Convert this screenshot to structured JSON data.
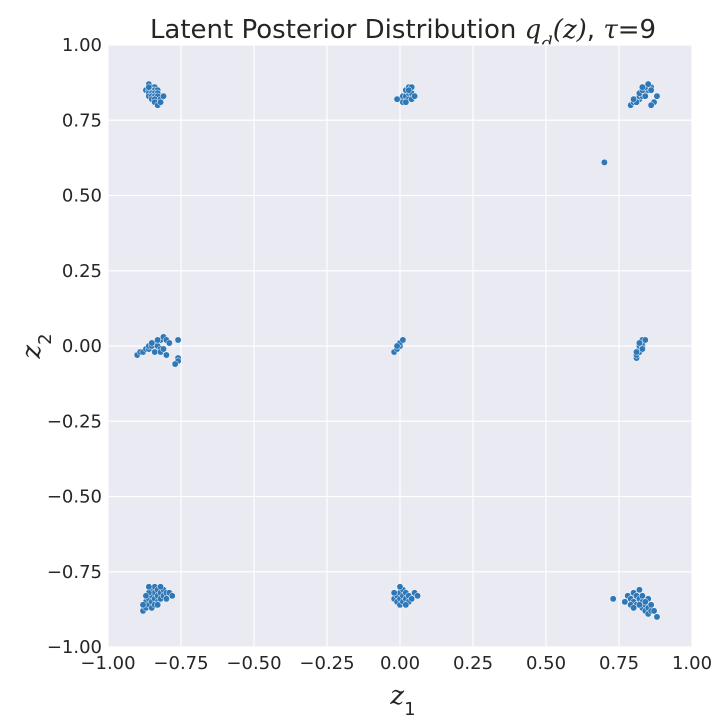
{
  "chart_data": {
    "type": "scatter",
    "title": {
      "prefix": "Latent Posterior Distribution ",
      "q": "q",
      "q_sub": "d",
      "arg": "(z)",
      "sep": ", ",
      "tau": "τ",
      "tau_value": "=9"
    },
    "xlabel": {
      "main": "z",
      "sub": "1"
    },
    "ylabel": {
      "main": "z",
      "sub": "2"
    },
    "xlim": [
      -1.0,
      1.0
    ],
    "ylim": [
      -1.0,
      1.0
    ],
    "xticks": [
      -1.0,
      -0.75,
      -0.5,
      -0.25,
      0.0,
      0.25,
      0.5,
      0.75,
      1.0
    ],
    "yticks": [
      -1.0,
      -0.75,
      -0.5,
      -0.25,
      0.0,
      0.25,
      0.5,
      0.75,
      1.0
    ],
    "xtick_labels": [
      "−1.00",
      "−0.75",
      "−0.50",
      "−0.25",
      "0.00",
      "0.25",
      "0.50",
      "0.75",
      "1.00"
    ],
    "ytick_labels": [
      "−1.00",
      "−0.75",
      "−0.50",
      "−0.25",
      "0.00",
      "0.25",
      "0.50",
      "0.75",
      "1.00"
    ],
    "grid": true,
    "background_color": "#eaeaf2",
    "point_color": "#2f78b7",
    "points": [
      [
        -0.86,
        0.87
      ],
      [
        -0.85,
        0.86
      ],
      [
        -0.84,
        0.86
      ],
      [
        -0.87,
        0.85
      ],
      [
        -0.86,
        0.85
      ],
      [
        -0.85,
        0.85
      ],
      [
        -0.84,
        0.85
      ],
      [
        -0.83,
        0.85
      ],
      [
        -0.86,
        0.84
      ],
      [
        -0.85,
        0.84
      ],
      [
        -0.84,
        0.84
      ],
      [
        -0.83,
        0.84
      ],
      [
        -0.86,
        0.83
      ],
      [
        -0.85,
        0.83
      ],
      [
        -0.84,
        0.83
      ],
      [
        -0.83,
        0.83
      ],
      [
        -0.85,
        0.82
      ],
      [
        -0.84,
        0.82
      ],
      [
        -0.82,
        0.82
      ],
      [
        -0.81,
        0.83
      ],
      [
        -0.84,
        0.81
      ],
      [
        -0.83,
        0.8
      ],
      [
        -0.82,
        0.81
      ],
      [
        -0.86,
        0.86
      ],
      [
        0.0,
        0.82
      ],
      [
        0.01,
        0.83
      ],
      [
        0.02,
        0.83
      ],
      [
        0.03,
        0.84
      ],
      [
        0.04,
        0.84
      ],
      [
        0.05,
        0.83
      ],
      [
        0.02,
        0.85
      ],
      [
        0.03,
        0.86
      ],
      [
        0.01,
        0.81
      ],
      [
        0.03,
        0.82
      ],
      [
        0.04,
        0.82
      ],
      [
        0.05,
        0.83
      ],
      [
        -0.01,
        0.82
      ],
      [
        0.02,
        0.81
      ],
      [
        0.04,
        0.86
      ],
      [
        0.03,
        0.85
      ],
      [
        0.79,
        0.8
      ],
      [
        0.8,
        0.81
      ],
      [
        0.81,
        0.82
      ],
      [
        0.82,
        0.82
      ],
      [
        0.82,
        0.83
      ],
      [
        0.83,
        0.83
      ],
      [
        0.83,
        0.84
      ],
      [
        0.84,
        0.84
      ],
      [
        0.84,
        0.85
      ],
      [
        0.85,
        0.85
      ],
      [
        0.85,
        0.86
      ],
      [
        0.86,
        0.86
      ],
      [
        0.81,
        0.81
      ],
      [
        0.82,
        0.84
      ],
      [
        0.83,
        0.85
      ],
      [
        0.84,
        0.86
      ],
      [
        0.85,
        0.87
      ],
      [
        0.86,
        0.85
      ],
      [
        0.87,
        0.81
      ],
      [
        0.88,
        0.83
      ],
      [
        0.86,
        0.8
      ],
      [
        0.8,
        0.82
      ],
      [
        0.83,
        0.86
      ],
      [
        0.84,
        0.83
      ],
      [
        0.7,
        0.61
      ],
      [
        -0.9,
        -0.03
      ],
      [
        -0.89,
        -0.02
      ],
      [
        -0.88,
        -0.02
      ],
      [
        -0.87,
        -0.01
      ],
      [
        -0.86,
        -0.01
      ],
      [
        -0.86,
        0.0
      ],
      [
        -0.85,
        0.0
      ],
      [
        -0.84,
        0.01
      ],
      [
        -0.83,
        0.0
      ],
      [
        -0.82,
        -0.01
      ],
      [
        -0.82,
        0.02
      ],
      [
        -0.81,
        0.03
      ],
      [
        -0.8,
        0.02
      ],
      [
        -0.84,
        -0.02
      ],
      [
        -0.82,
        -0.02
      ],
      [
        -0.8,
        -0.03
      ],
      [
        -0.76,
        -0.04
      ],
      [
        -0.76,
        -0.05
      ],
      [
        -0.77,
        -0.06
      ],
      [
        -0.76,
        0.02
      ],
      [
        -0.83,
        0.02
      ],
      [
        -0.85,
        0.01
      ],
      [
        -0.81,
        -0.01
      ],
      [
        -0.79,
        0.01
      ],
      [
        -0.02,
        -0.02
      ],
      [
        -0.01,
        -0.01
      ],
      [
        0.0,
        0.0
      ],
      [
        0.0,
        0.01
      ],
      [
        0.01,
        0.02
      ],
      [
        -0.01,
        0.0
      ],
      [
        0.81,
        -0.04
      ],
      [
        0.81,
        -0.03
      ],
      [
        0.82,
        -0.02
      ],
      [
        0.82,
        -0.01
      ],
      [
        0.82,
        0.0
      ],
      [
        0.83,
        0.0
      ],
      [
        0.83,
        0.01
      ],
      [
        0.83,
        0.02
      ],
      [
        0.84,
        0.02
      ],
      [
        0.82,
        0.01
      ],
      [
        0.81,
        -0.02
      ],
      [
        0.83,
        -0.01
      ],
      [
        -0.88,
        -0.88
      ],
      [
        -0.87,
        -0.87
      ],
      [
        -0.87,
        -0.85
      ],
      [
        -0.86,
        -0.86
      ],
      [
        -0.86,
        -0.84
      ],
      [
        -0.85,
        -0.83
      ],
      [
        -0.85,
        -0.85
      ],
      [
        -0.85,
        -0.81
      ],
      [
        -0.84,
        -0.82
      ],
      [
        -0.84,
        -0.84
      ],
      [
        -0.84,
        -0.8
      ],
      [
        -0.83,
        -0.81
      ],
      [
        -0.83,
        -0.83
      ],
      [
        -0.83,
        -0.85
      ],
      [
        -0.82,
        -0.82
      ],
      [
        -0.82,
        -0.84
      ],
      [
        -0.81,
        -0.81
      ],
      [
        -0.81,
        -0.83
      ],
      [
        -0.8,
        -0.82
      ],
      [
        -0.79,
        -0.82
      ],
      [
        -0.78,
        -0.83
      ],
      [
        -0.86,
        -0.82
      ],
      [
        -0.87,
        -0.83
      ],
      [
        -0.85,
        -0.87
      ],
      [
        -0.84,
        -0.86
      ],
      [
        -0.83,
        -0.86
      ],
      [
        -0.82,
        -0.8
      ],
      [
        -0.86,
        -0.8
      ],
      [
        -0.88,
        -0.86
      ],
      [
        -0.8,
        -0.84
      ],
      [
        -0.02,
        -0.84
      ],
      [
        -0.01,
        -0.83
      ],
      [
        -0.01,
        -0.85
      ],
      [
        0.0,
        -0.82
      ],
      [
        0.0,
        -0.84
      ],
      [
        0.0,
        -0.86
      ],
      [
        0.01,
        -0.81
      ],
      [
        0.01,
        -0.83
      ],
      [
        0.01,
        -0.85
      ],
      [
        0.02,
        -0.82
      ],
      [
        0.02,
        -0.84
      ],
      [
        0.03,
        -0.83
      ],
      [
        0.03,
        -0.85
      ],
      [
        0.04,
        -0.84
      ],
      [
        0.05,
        -0.82
      ],
      [
        0.06,
        -0.83
      ],
      [
        -0.02,
        -0.82
      ],
      [
        0.0,
        -0.8
      ],
      [
        0.02,
        -0.86
      ],
      [
        0.73,
        -0.84
      ],
      [
        0.77,
        -0.85
      ],
      [
        0.78,
        -0.83
      ],
      [
        0.79,
        -0.84
      ],
      [
        0.8,
        -0.82
      ],
      [
        0.8,
        -0.85
      ],
      [
        0.81,
        -0.86
      ],
      [
        0.81,
        -0.83
      ],
      [
        0.82,
        -0.84
      ],
      [
        0.82,
        -0.81
      ],
      [
        0.83,
        -0.87
      ],
      [
        0.83,
        -0.85
      ],
      [
        0.84,
        -0.86
      ],
      [
        0.84,
        -0.88
      ],
      [
        0.85,
        -0.87
      ],
      [
        0.85,
        -0.89
      ],
      [
        0.86,
        -0.88
      ],
      [
        0.86,
        -0.86
      ],
      [
        0.87,
        -0.88
      ],
      [
        0.88,
        -0.9
      ],
      [
        0.85,
        -0.84
      ],
      [
        0.82,
        -0.86
      ],
      [
        0.83,
        -0.83
      ],
      [
        0.79,
        -0.86
      ],
      [
        0.84,
        -0.85
      ],
      [
        0.8,
        -0.87
      ]
    ]
  }
}
